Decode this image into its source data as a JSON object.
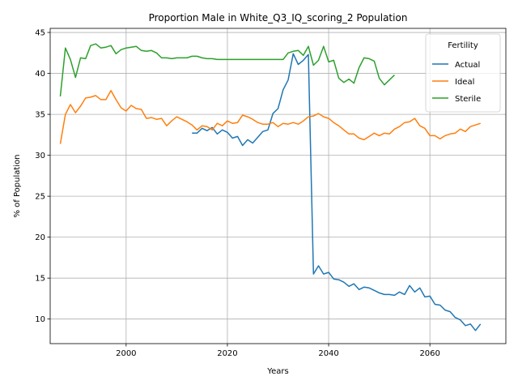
{
  "chart_data": {
    "type": "line",
    "title": "Proportion Male in White_Q3_IQ_scoring_2 Population",
    "xlabel": "Years",
    "ylabel": "% of Population",
    "xlim": [
      1985,
      2075
    ],
    "ylim": [
      7,
      45.5
    ],
    "xticks": [
      2000,
      2020,
      2040,
      2060
    ],
    "yticks": [
      10,
      15,
      20,
      25,
      30,
      35,
      40,
      45
    ],
    "grid": true,
    "legend": {
      "title": "Fertility",
      "placement": "top-right"
    },
    "colors": {
      "Actual": "#1f77b4",
      "Ideal": "#ff7f0e",
      "Sterile": "#2ca02c"
    },
    "series": [
      {
        "name": "Actual",
        "x": [
          2013,
          2014,
          2015,
          2016,
          2017,
          2018,
          2019,
          2020,
          2021,
          2022,
          2023,
          2024,
          2025,
          2026,
          2027,
          2028,
          2029,
          2030,
          2031,
          2032,
          2033,
          2034,
          2035,
          2036,
          2037,
          2038,
          2039,
          2040,
          2041,
          2042,
          2043,
          2044,
          2045,
          2046,
          2047,
          2048,
          2049,
          2050,
          2051,
          2052,
          2053,
          2054,
          2055,
          2056,
          2057,
          2058,
          2059,
          2060,
          2061,
          2062,
          2063,
          2064,
          2065,
          2066,
          2067,
          2068,
          2069,
          2070
        ],
        "y": [
          32.7,
          32.7,
          33.3,
          33.0,
          33.4,
          32.6,
          33.1,
          32.8,
          32.1,
          32.3,
          31.2,
          31.9,
          31.5,
          32.2,
          32.9,
          33.1,
          35.1,
          35.7,
          38.0,
          39.2,
          42.4,
          41.1,
          41.6,
          42.3,
          15.5,
          16.5,
          15.5,
          15.7,
          14.9,
          14.8,
          14.5,
          14.0,
          14.3,
          13.6,
          13.9,
          13.8,
          13.5,
          13.2,
          13.0,
          13.0,
          12.9,
          13.3,
          13.0,
          14.1,
          13.3,
          13.8,
          12.7,
          12.8,
          11.8,
          11.7,
          11.1,
          10.9,
          10.2,
          9.9,
          9.2,
          9.4,
          8.6,
          9.4
        ]
      },
      {
        "name": "Ideal",
        "x": [
          1987,
          1988,
          1989,
          1990,
          1991,
          1992,
          1993,
          1994,
          1995,
          1996,
          1997,
          1998,
          1999,
          2000,
          2001,
          2002,
          2003,
          2004,
          2005,
          2006,
          2007,
          2008,
          2009,
          2010,
          2011,
          2012,
          2013,
          2014,
          2015,
          2016,
          2017,
          2018,
          2019,
          2020,
          2021,
          2022,
          2023,
          2024,
          2025,
          2026,
          2027,
          2028,
          2029,
          2030,
          2031,
          2032,
          2033,
          2034,
          2035,
          2036,
          2037,
          2038,
          2039,
          2040,
          2041,
          2042,
          2043,
          2044,
          2045,
          2046,
          2047,
          2048,
          2049,
          2050,
          2051,
          2052,
          2053,
          2054,
          2055,
          2056,
          2057,
          2058,
          2059,
          2060,
          2061,
          2062,
          2063,
          2064,
          2065,
          2066,
          2067,
          2068,
          2069,
          2070
        ],
        "y": [
          31.4,
          35.0,
          36.2,
          35.2,
          36.0,
          37.0,
          37.1,
          37.3,
          36.8,
          36.8,
          37.9,
          36.8,
          35.8,
          35.4,
          36.1,
          35.7,
          35.6,
          34.5,
          34.6,
          34.4,
          34.5,
          33.6,
          34.2,
          34.7,
          34.4,
          34.1,
          33.7,
          33.1,
          33.6,
          33.5,
          33.1,
          33.9,
          33.6,
          34.2,
          33.9,
          34.0,
          34.9,
          34.7,
          34.4,
          34.0,
          33.8,
          33.8,
          34.0,
          33.5,
          33.9,
          33.8,
          34.0,
          33.8,
          34.2,
          34.7,
          34.8,
          35.1,
          34.7,
          34.5,
          34.0,
          33.6,
          33.1,
          32.6,
          32.6,
          32.1,
          31.9,
          32.3,
          32.7,
          32.4,
          32.7,
          32.6,
          33.2,
          33.5,
          34.0,
          34.1,
          34.5,
          33.6,
          33.3,
          32.4,
          32.4,
          32.0,
          32.4,
          32.6,
          32.7,
          33.2,
          32.9,
          33.5,
          33.7,
          33.9
        ]
      },
      {
        "name": "Sterile",
        "x": [
          1987,
          1988,
          1989,
          1990,
          1991,
          1992,
          1993,
          1994,
          1995,
          1996,
          1997,
          1998,
          1999,
          2000,
          2001,
          2002,
          2003,
          2004,
          2005,
          2006,
          2007,
          2008,
          2009,
          2010,
          2011,
          2012,
          2013,
          2014,
          2015,
          2016,
          2017,
          2018,
          2019,
          2020,
          2021,
          2022,
          2023,
          2024,
          2025,
          2026,
          2027,
          2028,
          2029,
          2030,
          2031,
          2032,
          2033,
          2034,
          2035,
          2036,
          2037,
          2038,
          2039,
          2040,
          2041,
          2042,
          2043,
          2044,
          2045,
          2046,
          2047,
          2048,
          2049,
          2050,
          2051,
          2052,
          2053
        ],
        "y": [
          37.2,
          43.1,
          41.7,
          39.5,
          41.9,
          41.8,
          43.4,
          43.6,
          43.1,
          43.2,
          43.4,
          42.4,
          42.9,
          43.1,
          43.2,
          43.3,
          42.8,
          42.7,
          42.8,
          42.5,
          41.9,
          41.9,
          41.8,
          41.9,
          41.9,
          41.9,
          42.1,
          42.1,
          41.9,
          41.8,
          41.8,
          41.7,
          41.7,
          41.7,
          41.7,
          41.7,
          41.7,
          41.7,
          41.7,
          41.7,
          41.7,
          41.7,
          41.7,
          41.7,
          41.7,
          42.5,
          42.7,
          42.8,
          42.2,
          43.3,
          41.0,
          41.6,
          43.3,
          41.4,
          41.6,
          39.4,
          38.9,
          39.3,
          38.8,
          40.7,
          41.9,
          41.8,
          41.5,
          39.4,
          38.6,
          39.2,
          39.8
        ]
      }
    ]
  }
}
